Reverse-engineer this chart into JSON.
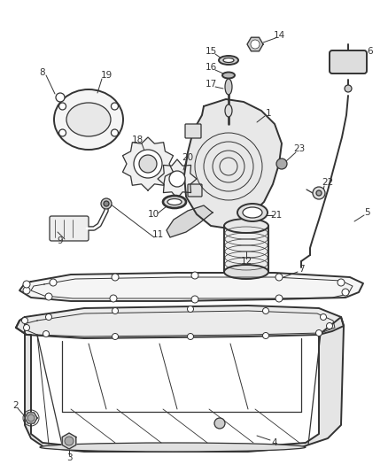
{
  "bg_color": "#ffffff",
  "line_color": "#333333",
  "label_color": "#333333",
  "fig_width": 4.38,
  "fig_height": 5.33,
  "dpi": 100
}
